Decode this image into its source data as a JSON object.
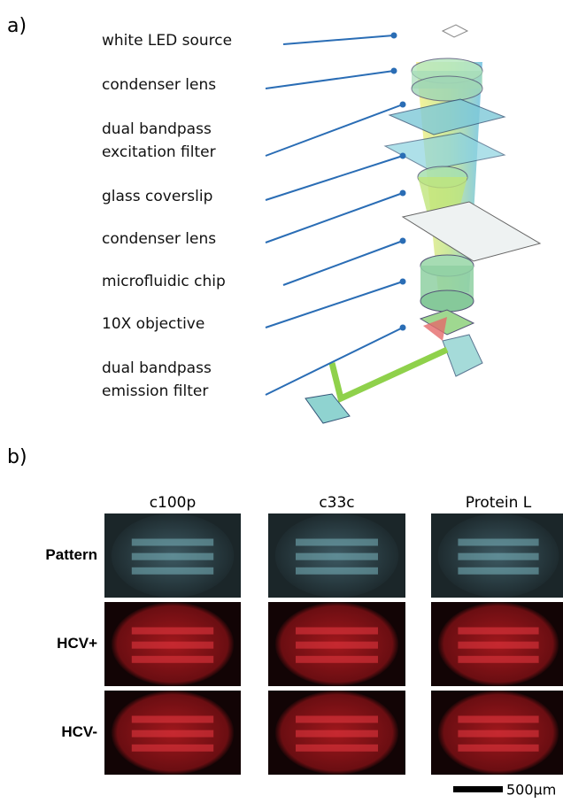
{
  "panel_a": {
    "label": "a)",
    "components": [
      {
        "lines": [
          "white LED source"
        ]
      },
      {
        "lines": [
          "condenser lens"
        ]
      },
      {
        "lines": [
          "dual bandpass",
          "excitation filter"
        ]
      },
      {
        "lines": [
          "glass coverslip"
        ]
      },
      {
        "lines": [
          "condenser lens"
        ]
      },
      {
        "lines": [
          "microfluidic chip"
        ]
      },
      {
        "lines": [
          "10X objective"
        ]
      },
      {
        "lines": [
          "dual bandpass",
          "emission filter"
        ]
      }
    ]
  },
  "panel_b": {
    "label": "b)",
    "columns": [
      "c100p",
      "c33c",
      "Protein L"
    ],
    "rows": [
      "Pattern",
      "HCV+",
      "HCV-"
    ],
    "scale_bar": "500µm"
  }
}
